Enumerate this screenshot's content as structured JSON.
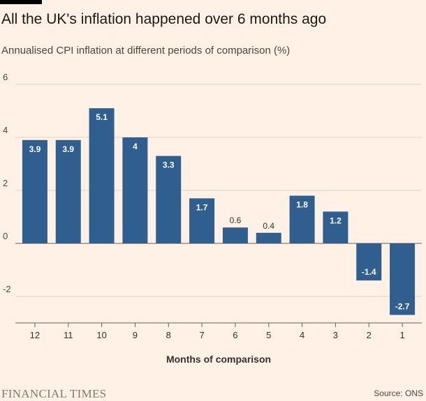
{
  "chart_data": {
    "type": "bar",
    "title": "All the UK's inflation happened over 6 months ago",
    "subtitle": "Annualised CPI inflation at different periods of comparison (%)",
    "xlabel": "Months of comparison",
    "ylabel": "",
    "categories": [
      "12",
      "11",
      "10",
      "9",
      "8",
      "7",
      "6",
      "5",
      "4",
      "3",
      "2",
      "1"
    ],
    "values": [
      3.9,
      3.9,
      5.1,
      4,
      3.3,
      1.7,
      0.6,
      0.4,
      1.8,
      1.2,
      -1.4,
      -2.7
    ],
    "data_labels": [
      "3.9",
      "3.9",
      "5.1",
      "4",
      "3.3",
      "1.7",
      "0.6",
      "0.4",
      "1.8",
      "1.2",
      "-1.4",
      "-2.7"
    ],
    "ylim": [
      -3,
      6
    ],
    "yticks": [
      6,
      4,
      2,
      0,
      -2
    ],
    "ytick_labels": [
      "6",
      "4",
      "2",
      "0",
      "-2"
    ],
    "grid": true,
    "bar_color": "#2f5e8f",
    "grid_color": "#e0d4c8",
    "zero_line_color": "#66605c",
    "source": "Source: ONS",
    "brand": "FINANCIAL TIMES"
  }
}
